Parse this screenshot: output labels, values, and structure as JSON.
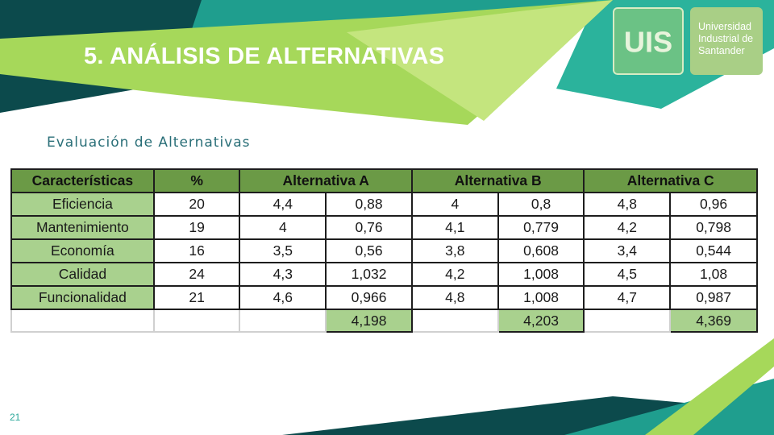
{
  "slide": {
    "title": "5. ANÁLISIS DE ALTERNATIVAS",
    "subtitle": "Evaluación de Alternativas",
    "page_number": "21"
  },
  "logo": {
    "monogram": "UIS",
    "line1": "Universidad",
    "line2": "Industrial de",
    "line3": "Santander"
  },
  "colors": {
    "header_green": "#6b9a46",
    "label_green": "#a9d18e",
    "teal": "#1f9e8e",
    "dark_teal": "#0c4a4c",
    "lime": "#a6d85a"
  },
  "table": {
    "headers": {
      "caracteristicas": "Características",
      "porcentaje": "%",
      "alt_a": "Alternativa A",
      "alt_b": "Alternativa B",
      "alt_c": "Alternativa C"
    },
    "rows": [
      {
        "label": "Eficiencia",
        "pct": "20",
        "a1": "4,4",
        "a2": "0,88",
        "b1": "4",
        "b2": "0,8",
        "c1": "4,8",
        "c2": "0,96"
      },
      {
        "label": "Mantenimiento",
        "pct": "19",
        "a1": "4",
        "a2": "0,76",
        "b1": "4,1",
        "b2": "0,779",
        "c1": "4,2",
        "c2": "0,798"
      },
      {
        "label": "Economía",
        "pct": "16",
        "a1": "3,5",
        "a2": "0,56",
        "b1": "3,8",
        "b2": "0,608",
        "c1": "3,4",
        "c2": "0,544"
      },
      {
        "label": "Calidad",
        "pct": "24",
        "a1": "4,3",
        "a2": "1,032",
        "b1": "4,2",
        "b2": "1,008",
        "c1": "4,5",
        "c2": "1,08"
      },
      {
        "label": "Funcionalidad",
        "pct": "21",
        "a1": "4,6",
        "a2": "0,966",
        "b1": "4,8",
        "b2": "1,008",
        "c1": "4,7",
        "c2": "0,987"
      }
    ],
    "totals": {
      "a": "4,198",
      "b": "4,203",
      "c": "4,369"
    }
  }
}
